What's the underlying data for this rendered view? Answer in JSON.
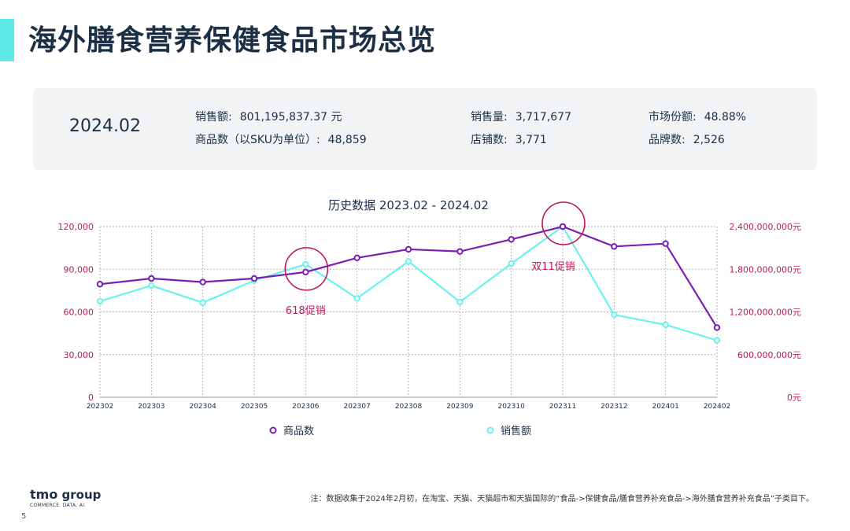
{
  "page": {
    "title": "海外膳食营养保健食品市场总览",
    "page_number": "5",
    "footnote": "注：数据收集于2024年2月初，在淘宝、天猫、天猫超市和天猫国际的“食品->保健食品/膳食营养补充食品->海外膳食营养补充食品”子类目下。"
  },
  "logo": {
    "brand": "tmo",
    "suffix": "group",
    "tagline": "COMMERCE. DATA. AI."
  },
  "summary": {
    "period": "2024.02",
    "stats": [
      {
        "label": "销售额:",
        "value": "801,195,837.37 元"
      },
      {
        "label": "销售量:",
        "value": "3,717,677"
      },
      {
        "label": "市场份额:",
        "value": "48.88%"
      },
      {
        "label": "商品数（以SKU为单位）:",
        "value": "48,859"
      },
      {
        "label": "店铺数:",
        "value": "3,771"
      },
      {
        "label": "品牌数:",
        "value": "2,526"
      }
    ]
  },
  "colors": {
    "primary": "#7b1fb4",
    "secondary": "#6cf2ee",
    "annotation": "#c2185b",
    "title": "#1c2f45",
    "panel": "#f1f3f5"
  },
  "chart_data": {
    "type": "line",
    "title": "历史数据 2023.02 - 2024.02",
    "categories": [
      "202302",
      "202303",
      "202304",
      "202305",
      "202306",
      "202307",
      "202308",
      "202309",
      "202310",
      "202311",
      "202312",
      "202401",
      "202402"
    ],
    "y_left": {
      "min": 0,
      "max": 120000,
      "ticks": [
        "0",
        "30,000",
        "60,000",
        "90,000",
        "120,000"
      ]
    },
    "y_right": {
      "min": 0,
      "max": 2400000000,
      "ticks": [
        "0元",
        "600,000,000元",
        "1,200,000,000元",
        "1,800,000,000元",
        "2,400,000,000元"
      ]
    },
    "grid": true,
    "legend_position": "bottom",
    "series": [
      {
        "name": "商品数",
        "axis": "left",
        "color": "#7b1fb4",
        "values": [
          79500,
          83500,
          81000,
          83500,
          88000,
          98000,
          104000,
          102500,
          111000,
          120000,
          106000,
          108000,
          49000
        ]
      },
      {
        "name": "销售额",
        "axis": "right",
        "color": "#6cf2ee",
        "values": [
          1350000000,
          1570000000,
          1330000000,
          1640000000,
          1870000000,
          1390000000,
          1910000000,
          1340000000,
          1880000000,
          2400000000,
          1160000000,
          1020000000,
          800000000
        ]
      }
    ],
    "annotations": [
      {
        "text": "618促销",
        "category_index": 4
      },
      {
        "text": "双11促销",
        "category_index": 9
      }
    ]
  }
}
